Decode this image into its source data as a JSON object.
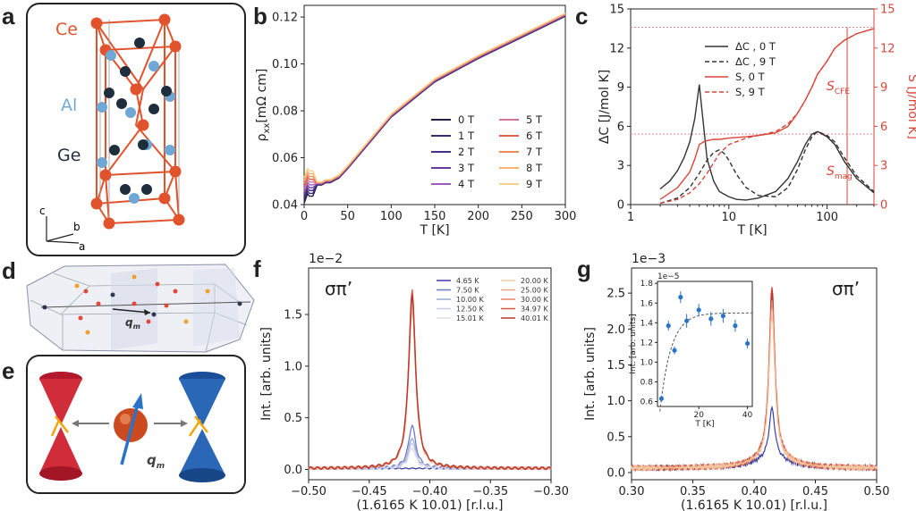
{
  "panel_labels": [
    "a",
    "b",
    "c",
    "d",
    "e",
    "f",
    "g"
  ],
  "panel_a": {
    "labels": [
      "Ce",
      "Al",
      "Ge"
    ],
    "axes": [
      "c",
      "b",
      "a"
    ],
    "colors": {
      "Ce": "#e0532c",
      "Al": "#6fa8d6",
      "Ge": "#1f2e3c"
    }
  },
  "panel_d": {
    "label": "q",
    "sub": "m"
  },
  "panel_e": {
    "label": "q",
    "sub": "m"
  },
  "chart_data": [
    {
      "id": "b",
      "type": "line",
      "xlabel": "T [K]",
      "ylabel_main": "ρ",
      "ylabel_sub": "xx",
      "ylabel_unit": "[mΩ cm]",
      "xlim": [
        0,
        300
      ],
      "ylim": [
        0.04,
        0.125
      ],
      "xticks": [
        "0",
        "50",
        "100",
        "150",
        "200",
        "250",
        "300"
      ],
      "yticks": [
        "0.04",
        "0.06",
        "0.08",
        "0.10",
        "0.12"
      ],
      "x": [
        0,
        2,
        4,
        6,
        8,
        10,
        15,
        20,
        25,
        30,
        40,
        50,
        75,
        100,
        150,
        200,
        250,
        300
      ],
      "y": [
        0.046,
        0.048,
        0.05,
        0.049,
        0.049,
        0.049,
        0.049,
        0.049,
        0.05,
        0.05,
        0.052,
        0.056,
        0.067,
        0.078,
        0.093,
        0.103,
        0.112,
        0.121
      ],
      "series": [
        {
          "name": "0 T",
          "color": "#2b1d4a"
        },
        {
          "name": "1 T",
          "color": "#3a2c6c"
        },
        {
          "name": "2 T",
          "color": "#4b2f86"
        },
        {
          "name": "3 T",
          "color": "#6a3aa2"
        },
        {
          "name": "4 T",
          "color": "#a35bb8"
        },
        {
          "name": "5 T",
          "color": "#d3759e"
        },
        {
          "name": "6 T",
          "color": "#e65b4f"
        },
        {
          "name": "7 T",
          "color": "#f08c55"
        },
        {
          "name": "8 T",
          "color": "#f6b475"
        },
        {
          "name": "9 T",
          "color": "#f8d28c"
        }
      ]
    },
    {
      "id": "c",
      "type": "line",
      "xlabel": "T [K]",
      "ylabel": "ΔC [J/mol K]",
      "ylabel_right": "S [J/mol K]",
      "xscale": "log",
      "xlim": [
        1,
        300
      ],
      "ylim": [
        0,
        15
      ],
      "ylim_right": [
        0,
        15
      ],
      "xticks": [
        "1",
        "10",
        "100"
      ],
      "yticks": [
        "0",
        "3",
        "6",
        "9",
        "12",
        "15"
      ],
      "yticks_right": [
        "0",
        "3",
        "6",
        "9",
        "12",
        "15"
      ],
      "annotations": [
        {
          "main": "S",
          "sub": "CFE"
        },
        {
          "main": "S",
          "sub": "mag"
        }
      ],
      "series": [
        {
          "name": "ΔC , 0 T",
          "color": "#333333",
          "dash": false,
          "x": [
            2,
            2.5,
            3,
            3.5,
            4,
            4.5,
            5,
            5.5,
            6,
            7,
            8,
            10,
            12,
            15,
            20,
            30,
            40,
            50,
            60,
            70,
            80,
            100,
            120,
            150,
            200,
            300
          ],
          "y": [
            1.2,
            1.8,
            2.6,
            3.6,
            4.8,
            6.6,
            9.2,
            6.2,
            3.5,
            1.8,
            1.0,
            0.6,
            0.4,
            0.35,
            0.5,
            1.0,
            2.0,
            3.3,
            4.6,
            5.4,
            5.6,
            5.2,
            4.6,
            3.3,
            2.0,
            0.9
          ]
        },
        {
          "name": "ΔC , 9 T",
          "color": "#333333",
          "dash": true,
          "x": [
            2,
            3,
            4,
            5,
            6,
            7,
            8,
            9,
            10,
            12,
            15,
            20,
            30,
            40,
            50,
            60,
            70,
            80,
            100,
            120,
            150,
            200,
            300
          ],
          "y": [
            0.1,
            0.5,
            1.3,
            2.4,
            3.4,
            4.0,
            4.2,
            3.9,
            3.4,
            2.3,
            1.3,
            0.7,
            0.6,
            1.3,
            2.7,
            4.2,
            5.2,
            5.6,
            5.3,
            4.8,
            3.6,
            2.2,
            1.0
          ]
        },
        {
          "name": "S, 0 T",
          "color": "#d9453a",
          "dash": false,
          "x": [
            2,
            3,
            4,
            4.5,
            5,
            5.5,
            6,
            7,
            8,
            10,
            15,
            20,
            30,
            40,
            50,
            60,
            70,
            80,
            100,
            120,
            150,
            200,
            300
          ],
          "y": [
            0.4,
            1.3,
            2.5,
            3.5,
            4.6,
            4.8,
            4.9,
            5.0,
            5.0,
            5.1,
            5.2,
            5.3,
            5.5,
            6.0,
            7.0,
            8.0,
            9.0,
            10.0,
            11.0,
            12.0,
            12.6,
            13.1,
            13.5
          ]
        },
        {
          "name": "S, 9 T",
          "color": "#d9453a",
          "dash": true,
          "x": [
            2,
            3,
            4,
            5,
            6,
            7,
            8,
            10,
            15,
            20,
            30,
            40,
            50,
            60,
            70,
            80,
            100,
            120,
            150,
            200,
            300
          ],
          "y": [
            0.1,
            0.4,
            0.9,
            1.6,
            2.4,
            3.2,
            3.9,
            4.6,
            5.1,
            5.3,
            5.6,
            6.2,
            7.0,
            8.0,
            9.0,
            10.0,
            11.0,
            12.0,
            12.6,
            13.1,
            13.5
          ]
        }
      ]
    },
    {
      "id": "f",
      "type": "line",
      "title": "σπ’",
      "multiplier": "1e−2",
      "xlabel": "(1.6165 K 10.01) [r.l.u.]",
      "ylabel": "Int. [arb. units]",
      "xlim": [
        -0.5,
        -0.3
      ],
      "ylim": [
        -0.1,
        1.95
      ],
      "xticks": [
        "−0.50",
        "−0.45",
        "−0.40",
        "−0.35",
        "−0.30"
      ],
      "yticks": [
        "0.0",
        "0.5",
        "1.0",
        "1.5"
      ],
      "peak_center": -0.4146,
      "series": [
        {
          "name": "4.65 K",
          "color": "#3a3fa0",
          "peak": 0.0
        },
        {
          "name": "7.50 K",
          "color": "#6f79cc",
          "peak": 0.42
        },
        {
          "name": "10.00 K",
          "color": "#9aa6d8",
          "peak": 0.3
        },
        {
          "name": "12.50 K",
          "color": "#c5cce6",
          "peak": 0.25
        },
        {
          "name": "15.01 K",
          "color": "#dddde8",
          "peak": 0.2
        },
        {
          "name": "20.00 K",
          "color": "#f3c9a5",
          "peak": 1.55
        },
        {
          "name": "25.00 K",
          "color": "#ecab86",
          "peak": 1.6
        },
        {
          "name": "30.00 K",
          "color": "#e78a66",
          "peak": 1.65
        },
        {
          "name": "34.97 K",
          "color": "#dc5a45",
          "peak": 1.72
        },
        {
          "name": "40.01 K",
          "color": "#b9382f",
          "peak": 1.68
        }
      ]
    },
    {
      "id": "g",
      "type": "line",
      "title": "σπ’",
      "multiplier": "1e−3",
      "xlabel": "(1.6165 K 10.01) [r.l.u.]",
      "ylabel": "Int. [arb. units]",
      "xlim": [
        0.3,
        0.5
      ],
      "ylim": [
        -0.1,
        2.85
      ],
      "xticks": [
        "0.30",
        "0.35",
        "0.40",
        "0.45",
        "0.50"
      ],
      "yticks": [
        "0.0",
        "0.5",
        "1.0",
        "1.5",
        "2.0",
        "2.5"
      ],
      "peak_center": 0.4146,
      "inset": {
        "multiplier": "1e−5",
        "xlabel": "T [K]",
        "ylabel": "Int. [arb. units]",
        "xlim": [
          3,
          42
        ],
        "ylim": [
          0.55,
          1.82
        ],
        "xticks": [
          "20",
          "40"
        ],
        "yticks": [
          "0.6",
          "0.8",
          "1.0",
          "1.2",
          "1.4",
          "1.6",
          "1.8"
        ],
        "x": [
          4.65,
          7.5,
          10.0,
          12.5,
          15.01,
          20.0,
          25.0,
          30.0,
          34.97,
          40.01
        ],
        "y": [
          0.63,
          1.37,
          1.12,
          1.66,
          1.42,
          1.53,
          1.44,
          1.47,
          1.37,
          1.19
        ],
        "err": [
          0.03,
          0.05,
          0.04,
          0.06,
          0.07,
          0.06,
          0.07,
          0.07,
          0.06,
          0.05
        ]
      }
    }
  ]
}
